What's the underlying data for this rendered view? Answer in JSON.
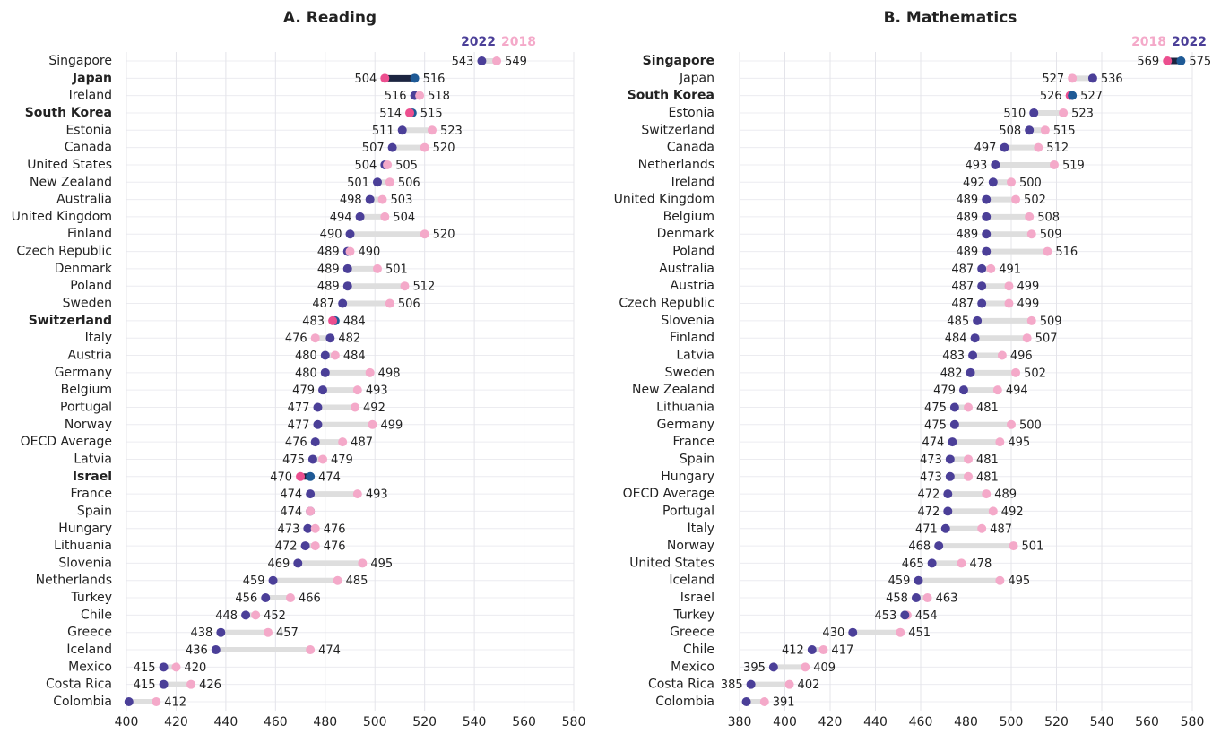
{
  "chart_data": [
    {
      "type": "dumbbell",
      "title": "A. Reading",
      "categories": [
        "Singapore",
        "Japan",
        "Ireland",
        "South Korea",
        "Estonia",
        "Canada",
        "United States",
        "New Zealand",
        "Australia",
        "United Kingdom",
        "Finland",
        "Czech Republic",
        "Denmark",
        "Poland",
        "Sweden",
        "Switzerland",
        "Italy",
        "Austria",
        "Germany",
        "Belgium",
        "Portugal",
        "Norway",
        "OECD Average",
        "Latvia",
        "Israel",
        "France",
        "Spain",
        "Hungary",
        "Lithuania",
        "Slovenia",
        "Netherlands",
        "Turkey",
        "Chile",
        "Greece",
        "Iceland",
        "Mexico",
        "Costa Rica",
        "Colombia"
      ],
      "highlighted": [
        false,
        true,
        false,
        true,
        false,
        false,
        false,
        false,
        false,
        false,
        false,
        false,
        false,
        false,
        false,
        true,
        false,
        false,
        false,
        false,
        false,
        false,
        false,
        false,
        true,
        false,
        false,
        false,
        false,
        false,
        false,
        false,
        false,
        false,
        false,
        false,
        false,
        false
      ],
      "series": [
        {
          "name": "2022",
          "color": "#4b3f98",
          "highlight_color": "#1f5a96",
          "values": [
            543,
            516,
            516,
            515,
            511,
            507,
            504,
            501,
            498,
            494,
            490,
            489,
            489,
            489,
            487,
            484,
            482,
            480,
            480,
            479,
            477,
            477,
            476,
            475,
            474,
            474,
            474,
            473,
            472,
            469,
            459,
            456,
            448,
            438,
            436,
            415,
            415,
            401
          ]
        },
        {
          "name": "2018",
          "color": "#f4a9c9",
          "highlight_color": "#ec4f8f",
          "values": [
            549,
            504,
            518,
            514,
            523,
            520,
            505,
            506,
            503,
            504,
            520,
            490,
            501,
            512,
            506,
            483,
            476,
            484,
            498,
            493,
            492,
            499,
            487,
            479,
            470,
            493,
            474,
            476,
            476,
            495,
            485,
            466,
            452,
            457,
            474,
            420,
            426,
            412
          ]
        }
      ],
      "line_color": "#dedede",
      "highlight_line_color": "#1c2541",
      "xlim": [
        400,
        580
      ],
      "xticks": [
        400,
        420,
        440,
        460,
        480,
        500,
        520,
        540,
        560,
        580
      ],
      "grid": true
    },
    {
      "type": "dumbbell",
      "title": "B. Mathematics",
      "categories": [
        "Singapore",
        "Japan",
        "South Korea",
        "Estonia",
        "Switzerland",
        "Canada",
        "Netherlands",
        "Ireland",
        "United Kingdom",
        "Belgium",
        "Denmark",
        "Poland",
        "Australia",
        "Austria",
        "Czech Republic",
        "Slovenia",
        "Finland",
        "Latvia",
        "Sweden",
        "New Zealand",
        "Lithuania",
        "Germany",
        "France",
        "Spain",
        "Hungary",
        "OECD Average",
        "Portugal",
        "Italy",
        "Norway",
        "United States",
        "Iceland",
        "Israel",
        "Turkey",
        "Greece",
        "Chile",
        "Mexico",
        "Costa Rica",
        "Colombia"
      ],
      "highlighted": [
        true,
        false,
        true,
        false,
        false,
        false,
        false,
        false,
        false,
        false,
        false,
        false,
        false,
        false,
        false,
        false,
        false,
        false,
        false,
        false,
        false,
        false,
        false,
        false,
        false,
        false,
        false,
        false,
        false,
        false,
        false,
        false,
        false,
        false,
        false,
        false,
        false,
        false
      ],
      "series": [
        {
          "name": "2018",
          "color": "#f4a9c9",
          "highlight_color": "#ec4f8f",
          "values": [
            569,
            527,
            526,
            523,
            515,
            512,
            519,
            500,
            502,
            508,
            509,
            516,
            491,
            499,
            499,
            509,
            507,
            496,
            502,
            494,
            481,
            500,
            495,
            481,
            481,
            489,
            492,
            487,
            501,
            478,
            495,
            463,
            454,
            451,
            417,
            409,
            402,
            391
          ]
        },
        {
          "name": "2022",
          "color": "#4b3f98",
          "highlight_color": "#1f5a96",
          "values": [
            575,
            536,
            527,
            510,
            508,
            497,
            493,
            492,
            489,
            489,
            489,
            489,
            487,
            487,
            487,
            485,
            484,
            483,
            482,
            479,
            475,
            475,
            474,
            473,
            473,
            472,
            472,
            471,
            468,
            465,
            459,
            458,
            453,
            430,
            412,
            395,
            385,
            383
          ]
        }
      ],
      "line_color": "#dedede",
      "highlight_line_color": "#1c2541",
      "xlim": [
        380,
        580
      ],
      "xticks": [
        380,
        400,
        420,
        440,
        460,
        480,
        500,
        520,
        540,
        560,
        580
      ],
      "grid": true
    }
  ]
}
